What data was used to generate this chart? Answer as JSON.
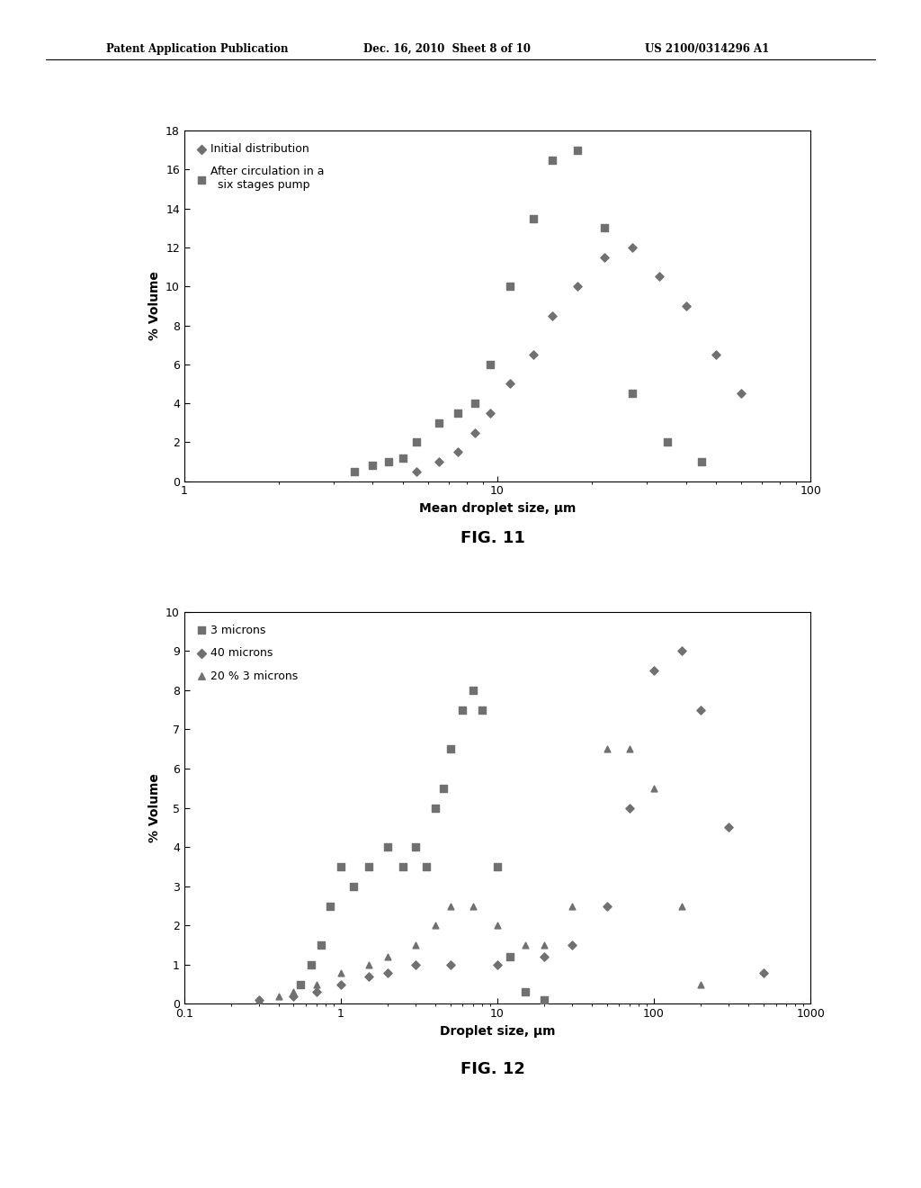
{
  "fig11": {
    "title": "FIG. 11",
    "xlabel": "Mean droplet size, μm",
    "ylabel": "% Volume",
    "xlim": [
      1,
      100
    ],
    "ylim": [
      0,
      18
    ],
    "yticks": [
      0,
      2,
      4,
      6,
      8,
      10,
      12,
      14,
      16,
      18
    ],
    "xticks": [
      1,
      10,
      100
    ],
    "legend1": "Initial distribution",
    "legend2": "After circulation in a\n  six stages pump",
    "series1_x": [
      5.5,
      6.5,
      7.5,
      8.5,
      9.5,
      11,
      13,
      15,
      18,
      22,
      27,
      33,
      40,
      50,
      60
    ],
    "series1_y": [
      0.5,
      1.0,
      1.5,
      2.5,
      3.5,
      5.0,
      6.5,
      8.5,
      10.0,
      11.5,
      12.0,
      10.5,
      9.0,
      6.5,
      4.5
    ],
    "series2_x": [
      3.5,
      4.0,
      4.5,
      5.0,
      5.5,
      6.5,
      7.5,
      8.5,
      9.5,
      11,
      13,
      15,
      18,
      22,
      27,
      35,
      45
    ],
    "series2_y": [
      0.5,
      0.8,
      1.0,
      1.2,
      2.0,
      3.0,
      3.5,
      4.0,
      6.0,
      10.0,
      13.5,
      16.5,
      17.0,
      13.0,
      4.5,
      2.0,
      1.0
    ]
  },
  "fig12": {
    "title": "FIG. 12",
    "xlabel": "Droplet size, μm",
    "ylabel": "% Volume",
    "xlim": [
      0.1,
      1000
    ],
    "ylim": [
      0,
      10
    ],
    "yticks": [
      0,
      1,
      2,
      3,
      4,
      5,
      6,
      7,
      8,
      9,
      10
    ],
    "xticks": [
      0.1,
      1,
      10,
      100,
      1000
    ],
    "legend1": "3 microns",
    "legend2": "40 microns",
    "legend3": "20 % 3 microns",
    "s1_x": [
      0.55,
      0.65,
      0.75,
      0.85,
      1.0,
      1.2,
      1.5,
      2.0,
      2.5,
      3.0,
      3.5,
      4.0,
      4.5,
      5.0,
      6.0,
      7.0,
      8.0,
      10.0,
      12.0,
      15.0,
      20.0
    ],
    "s1_y": [
      0.5,
      1.0,
      1.5,
      2.5,
      3.5,
      3.0,
      3.5,
      4.0,
      3.5,
      4.0,
      3.5,
      5.0,
      5.5,
      6.5,
      7.5,
      8.0,
      7.5,
      3.5,
      1.2,
      0.3,
      0.1
    ],
    "s2_x": [
      0.3,
      0.5,
      0.7,
      1.0,
      1.5,
      2.0,
      3.0,
      5.0,
      10.0,
      20.0,
      30.0,
      50.0,
      70.0,
      100.0,
      150.0,
      200.0,
      300.0,
      500.0
    ],
    "s2_y": [
      0.1,
      0.2,
      0.3,
      0.5,
      0.7,
      0.8,
      1.0,
      1.0,
      1.0,
      1.2,
      1.5,
      2.5,
      5.0,
      8.5,
      9.0,
      7.5,
      4.5,
      0.8
    ],
    "s3_x": [
      0.3,
      0.4,
      0.5,
      0.7,
      1.0,
      1.5,
      2.0,
      3.0,
      4.0,
      5.0,
      7.0,
      10.0,
      15.0,
      20.0,
      30.0,
      50.0,
      70.0,
      100.0,
      150.0,
      200.0
    ],
    "s3_y": [
      0.1,
      0.2,
      0.3,
      0.5,
      0.8,
      1.0,
      1.2,
      1.5,
      2.0,
      2.5,
      2.5,
      2.0,
      1.5,
      1.5,
      2.5,
      6.5,
      6.5,
      5.5,
      2.5,
      0.5
    ]
  },
  "header_left": "Patent Application Publication",
  "header_mid": "Dec. 16, 2010  Sheet 8 of 10",
  "header_right": "US 2100/0314296 A1",
  "marker_color": "#707070",
  "bg_color": "#ffffff"
}
